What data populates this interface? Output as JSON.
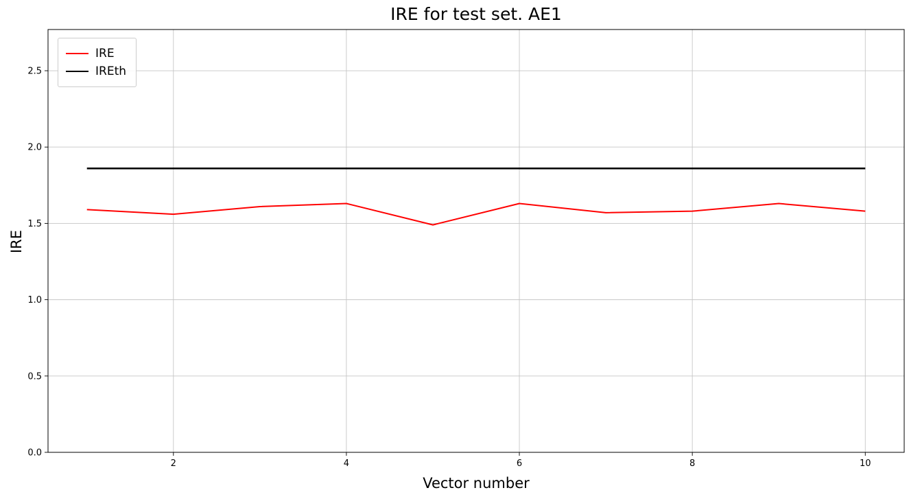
{
  "chart_data": {
    "type": "line",
    "title": "IRE for test set. AE1",
    "xlabel": "Vector number",
    "ylabel": "IRE",
    "x": [
      1,
      2,
      3,
      4,
      5,
      6,
      7,
      8,
      9,
      10
    ],
    "series": [
      {
        "name": "IRE",
        "color": "#ff0000",
        "linewidth": 2,
        "values": [
          1.59,
          1.56,
          1.61,
          1.63,
          1.49,
          1.63,
          1.57,
          1.58,
          1.63,
          1.58
        ]
      },
      {
        "name": "IREth",
        "color": "#000000",
        "linewidth": 2.5,
        "values": [
          1.86,
          1.86,
          1.86,
          1.86,
          1.86,
          1.86,
          1.86,
          1.86,
          1.86,
          1.86
        ]
      }
    ],
    "xlim": [
      0.55,
      10.45
    ],
    "ylim": [
      0,
      2.77
    ],
    "xticks": [
      2,
      4,
      6,
      8,
      10
    ],
    "xtick_labels": [
      "2",
      "4",
      "6",
      "8",
      "10"
    ],
    "yticks": [
      0.0,
      0.5,
      1.0,
      1.5,
      2.0,
      2.5
    ],
    "ytick_labels": [
      "0.0",
      "0.5",
      "1.0",
      "1.5",
      "2.0",
      "2.5"
    ],
    "grid": true,
    "legend_position": "upper left"
  }
}
